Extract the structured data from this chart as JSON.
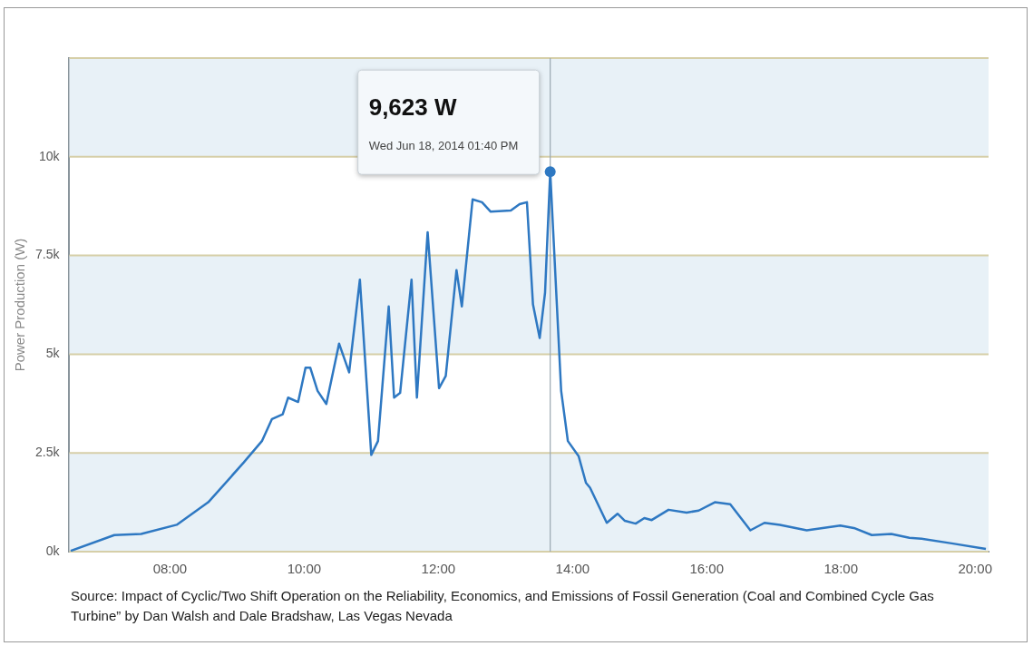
{
  "chart_data": {
    "type": "line",
    "ylabel": "Power Production (W)",
    "xlim": [
      6.5,
      20.2
    ],
    "ylim": [
      0,
      12500
    ],
    "xticks": [
      {
        "value": 8,
        "label": "08:00"
      },
      {
        "value": 10,
        "label": "10:00"
      },
      {
        "value": 12,
        "label": "12:00"
      },
      {
        "value": 14,
        "label": "14:00"
      },
      {
        "value": 16,
        "label": "16:00"
      },
      {
        "value": 18,
        "label": "18:00"
      },
      {
        "value": 20,
        "label": "20:00"
      }
    ],
    "yticks": [
      {
        "value": 0,
        "label": "0k"
      },
      {
        "value": 2500,
        "label": "2.5k"
      },
      {
        "value": 5000,
        "label": "5k"
      },
      {
        "value": 7500,
        "label": "7.5k"
      },
      {
        "value": 10000,
        "label": "10k"
      }
    ],
    "grid": "y",
    "legend": false,
    "marker": "none",
    "bands": [
      {
        "axis": "y",
        "from": 0,
        "to": 2500,
        "color": "#e8f1f7"
      },
      {
        "axis": "y",
        "from": 5000,
        "to": 7500,
        "color": "#e8f1f7"
      },
      {
        "axis": "y",
        "from": 10000,
        "to": 12500,
        "color": "#e8f1f7"
      }
    ],
    "ref_lines": [
      {
        "axis": "x",
        "value": 13.667,
        "color": "#9aa7b0"
      }
    ],
    "annotations": [
      "9,623 W",
      "Wed Jun 18, 2014 01:40 PM",
      "Source: Impact of Cyclic/Two Shift Operation on the Reliability, Economics, and Emissions of Fossil Generation (Coal and Combined Cycle Gas Turbine” by Dan Walsh and Dale Bradshaw, Las Vegas Nevada"
    ],
    "series": [
      {
        "color": "#2e78c2",
        "x": [
          6.52,
          7.17,
          7.57,
          8.1,
          8.57,
          9.1,
          9.37,
          9.52,
          9.68,
          9.76,
          9.91,
          10.02,
          10.09,
          10.2,
          10.33,
          10.52,
          10.67,
          10.83,
          11.0,
          11.1,
          11.26,
          11.34,
          11.43,
          11.6,
          11.68,
          11.84,
          12.01,
          12.11,
          12.27,
          12.35,
          12.51,
          12.65,
          12.78,
          13.08,
          13.21,
          13.32,
          13.41,
          13.51,
          13.59,
          13.667,
          13.83,
          13.93,
          14.09,
          14.2,
          14.26,
          14.51,
          14.67,
          14.78,
          14.94,
          15.07,
          15.18,
          15.43,
          15.7,
          15.88,
          16.12,
          16.35,
          16.65,
          16.86,
          17.09,
          17.49,
          17.99,
          18.21,
          18.46,
          18.75,
          19.02,
          19.2,
          19.65,
          20.16
        ],
        "values": [
          20,
          420,
          450,
          680,
          1250,
          2260,
          2800,
          3360,
          3480,
          3900,
          3790,
          4660,
          4660,
          4070,
          3740,
          5270,
          4540,
          6890,
          2450,
          2800,
          6210,
          3900,
          4020,
          6890,
          3900,
          8090,
          4140,
          4450,
          7130,
          6210,
          8920,
          8850,
          8610,
          8640,
          8800,
          8850,
          6260,
          5410,
          6560,
          9623,
          4070,
          2800,
          2420,
          1740,
          1620,
          730,
          960,
          780,
          710,
          850,
          800,
          1060,
          990,
          1040,
          1250,
          1200,
          540,
          730,
          680,
          540,
          660,
          590,
          420,
          450,
          350,
          330,
          210,
          70
        ]
      }
    ]
  }
}
